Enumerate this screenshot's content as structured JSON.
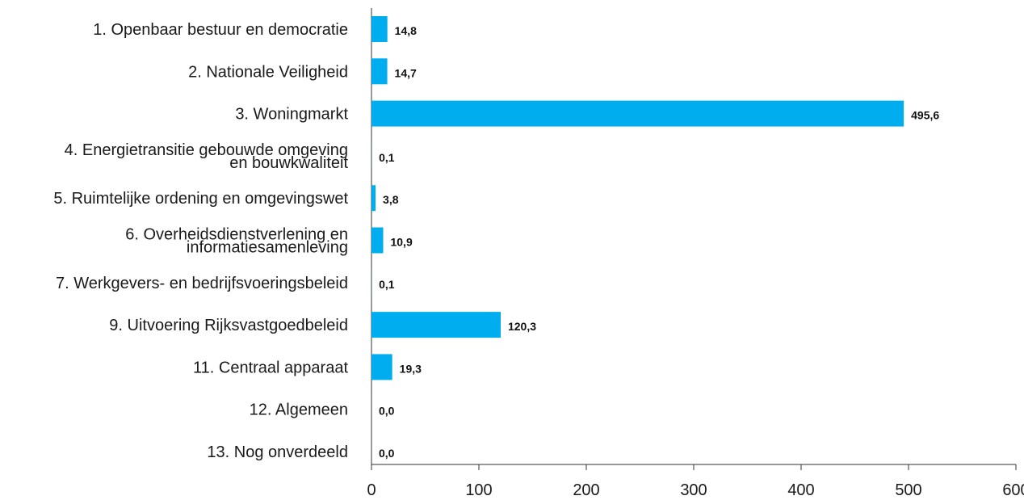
{
  "chart_data": {
    "type": "bar",
    "orientation": "horizontal",
    "categories": [
      "1. Openbaar bestuur en democratie",
      "2. Nationale Veiligheid",
      "3. Woningmarkt",
      "4. Energietransitie gebouwde omgeving\nen bouwkwaliteit",
      "5. Ruimtelijke ordening en omgevingswet",
      "6. Overheidsdienstverlening en\ninformatiesamenleving",
      "7. Werkgevers- en bedrijfsvoeringsbeleid",
      "9. Uitvoering Rijksvastgoedbeleid",
      "11. Centraal apparaat",
      "12. Algemeen",
      "13. Nog onverdeeld"
    ],
    "values": [
      14.8,
      14.7,
      495.6,
      0.1,
      3.8,
      10.9,
      0.1,
      120.3,
      19.3,
      0.0,
      0.0
    ],
    "value_labels": [
      "14,8",
      "14,7",
      "495,6",
      "0,1",
      "3,8",
      "10,9",
      "0,1",
      "120,3",
      "19,3",
      "0,0",
      "0,0"
    ],
    "xlim": [
      0,
      600
    ],
    "xticks": [
      0,
      100,
      200,
      300,
      400,
      500,
      600
    ],
    "xtick_labels": [
      "0",
      "100",
      "200",
      "300",
      "400",
      "500",
      "600"
    ],
    "bar_color": "#00aeef",
    "grid": false,
    "legend": "none"
  }
}
